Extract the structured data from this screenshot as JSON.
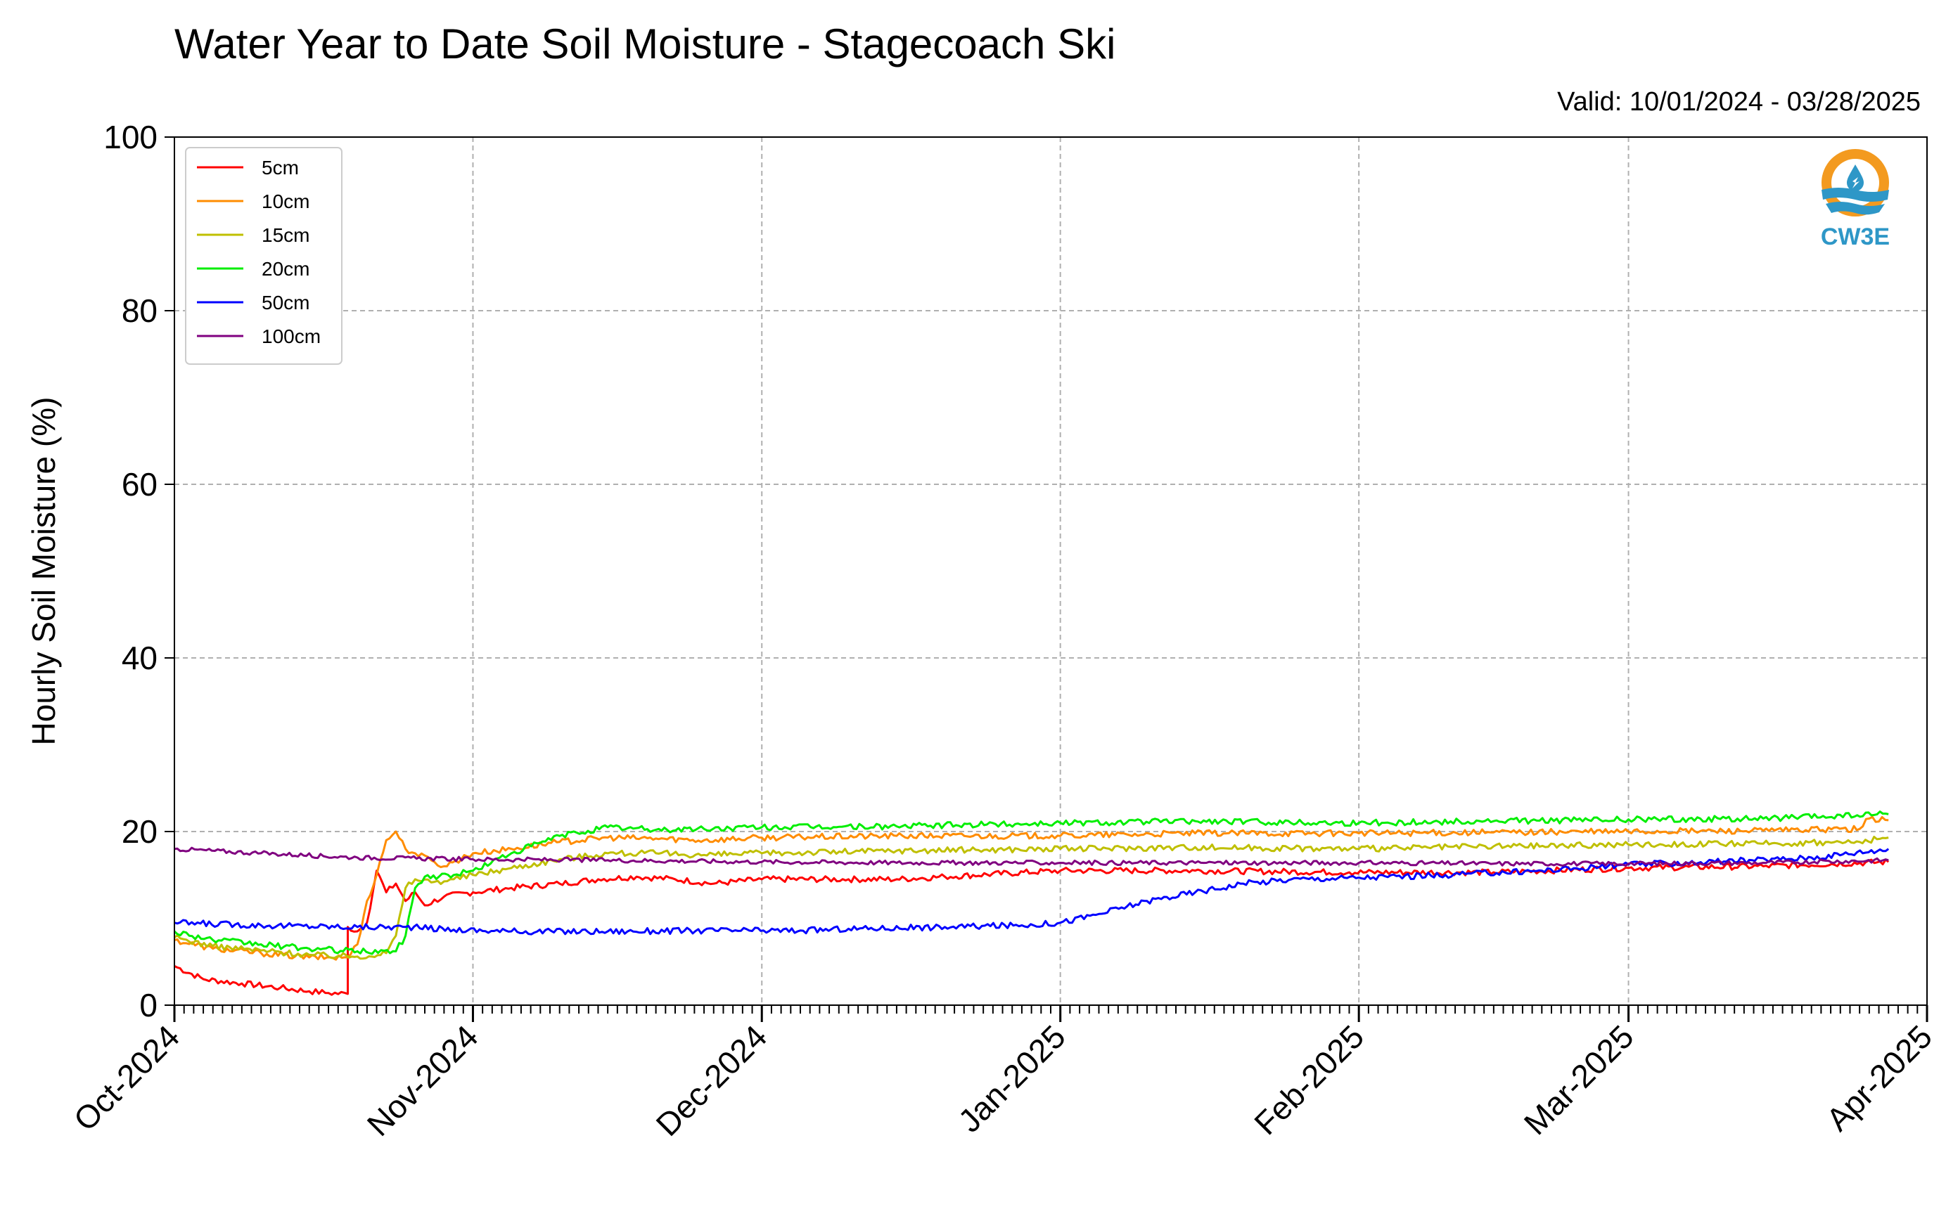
{
  "title": "Water Year to Date Soil Moisture - Stagecoach Ski",
  "valid": "Valid: 10/01/2024 - 03/28/2025",
  "logo": {
    "text": "CW3E",
    "icon": "water-drop-icon"
  },
  "chart_data": {
    "type": "line",
    "title": "Water Year to Date Soil Moisture - Stagecoach Ski",
    "ylabel": "Hourly Soil Moisture (%)",
    "xlabel": "",
    "ylim": [
      0,
      100
    ],
    "yticks": [
      0,
      20,
      40,
      60,
      80,
      100
    ],
    "xlim": [
      "2024-10-01",
      "2025-04-01"
    ],
    "xticks": [
      {
        "label": "Oct-2024",
        "date": "2024-10-01"
      },
      {
        "label": "Nov-2024",
        "date": "2024-11-01"
      },
      {
        "label": "Dec-2024",
        "date": "2024-12-01"
      },
      {
        "label": "Jan-2025",
        "date": "2025-01-01"
      },
      {
        "label": "Feb-2025",
        "date": "2025-02-01"
      },
      {
        "label": "Mar-2025",
        "date": "2025-03-01"
      },
      {
        "label": "Apr-2025",
        "date": "2025-04-01"
      }
    ],
    "grid": true,
    "legend_position": "top-left",
    "series": [
      {
        "name": "5cm",
        "color": "#ff0000",
        "points": [
          [
            "2024-10-01",
            4.5
          ],
          [
            "2024-10-04",
            3
          ],
          [
            "2024-10-08",
            2.5
          ],
          [
            "2024-10-12",
            2
          ],
          [
            "2024-10-15",
            1.6
          ],
          [
            "2024-10-17",
            1.4
          ],
          [
            "2024-10-19",
            1.3
          ],
          [
            "2024-10-19",
            9
          ],
          [
            "2024-10-20",
            8.5
          ],
          [
            "2024-10-21",
            9.5
          ],
          [
            "2024-10-22",
            15.5
          ],
          [
            "2024-10-23",
            13
          ],
          [
            "2024-10-24",
            14
          ],
          [
            "2024-10-25",
            12
          ],
          [
            "2024-10-26",
            13
          ],
          [
            "2024-10-27",
            11.5
          ],
          [
            "2024-10-29",
            12.5
          ],
          [
            "2024-11-01",
            13
          ],
          [
            "2024-11-05",
            13.5
          ],
          [
            "2024-11-10",
            14
          ],
          [
            "2024-11-14",
            14.5
          ],
          [
            "2024-11-18",
            14.8
          ],
          [
            "2024-11-22",
            14.5
          ],
          [
            "2024-11-26",
            14
          ],
          [
            "2024-12-01",
            14.5
          ],
          [
            "2024-12-10",
            14.5
          ],
          [
            "2024-12-15",
            14.5
          ],
          [
            "2024-12-20",
            14.8
          ],
          [
            "2025-01-01",
            15.5
          ],
          [
            "2025-01-15",
            15.5
          ],
          [
            "2025-01-31",
            15.3
          ],
          [
            "2025-02-15",
            15.3
          ],
          [
            "2025-03-01",
            15.8
          ],
          [
            "2025-03-15",
            16
          ],
          [
            "2025-03-28",
            16.5
          ]
        ]
      },
      {
        "name": "10cm",
        "color": "#ff8c00",
        "points": [
          [
            "2024-10-01",
            7.5
          ],
          [
            "2024-10-05",
            6.5
          ],
          [
            "2024-10-10",
            6
          ],
          [
            "2024-10-15",
            5.5
          ],
          [
            "2024-10-19",
            5.5
          ],
          [
            "2024-10-20",
            7
          ],
          [
            "2024-10-21",
            12
          ],
          [
            "2024-10-22",
            15
          ],
          [
            "2024-10-23",
            19
          ],
          [
            "2024-10-24",
            20
          ],
          [
            "2024-10-25",
            18
          ],
          [
            "2024-10-26",
            17.5
          ],
          [
            "2024-10-28",
            16.5
          ],
          [
            "2024-10-29",
            16
          ],
          [
            "2024-11-01",
            17.5
          ],
          [
            "2024-11-05",
            18
          ],
          [
            "2024-11-10",
            18.8
          ],
          [
            "2024-11-15",
            19.3
          ],
          [
            "2024-11-20",
            19.2
          ],
          [
            "2024-11-25",
            19
          ],
          [
            "2024-12-01",
            19.3
          ],
          [
            "2024-12-15",
            19.5
          ],
          [
            "2025-01-01",
            19.5
          ],
          [
            "2025-01-15",
            19.8
          ],
          [
            "2025-02-01",
            19.8
          ],
          [
            "2025-02-15",
            19.9
          ],
          [
            "2025-03-01",
            20
          ],
          [
            "2025-03-15",
            20.1
          ],
          [
            "2025-03-25",
            20.3
          ],
          [
            "2025-03-26",
            21.5
          ],
          [
            "2025-03-28",
            21.3
          ]
        ]
      },
      {
        "name": "15cm",
        "color": "#bfbf00",
        "points": [
          [
            "2024-10-01",
            7.8
          ],
          [
            "2024-10-05",
            6.8
          ],
          [
            "2024-10-10",
            6.3
          ],
          [
            "2024-10-15",
            5.8
          ],
          [
            "2024-10-20",
            5.6
          ],
          [
            "2024-10-23",
            6
          ],
          [
            "2024-10-24",
            8
          ],
          [
            "2024-10-25",
            13.5
          ],
          [
            "2024-10-26",
            14.5
          ],
          [
            "2024-10-28",
            14.2
          ],
          [
            "2024-10-30",
            14.5
          ],
          [
            "2024-11-01",
            15
          ],
          [
            "2024-11-05",
            15.8
          ],
          [
            "2024-11-10",
            16.8
          ],
          [
            "2024-11-15",
            17.5
          ],
          [
            "2024-11-20",
            17.5
          ],
          [
            "2024-11-25",
            17.3
          ],
          [
            "2024-12-01",
            17.5
          ],
          [
            "2024-12-15",
            17.8
          ],
          [
            "2025-01-01",
            18
          ],
          [
            "2025-01-15",
            18.2
          ],
          [
            "2025-02-01",
            18
          ],
          [
            "2025-02-15",
            18.3
          ],
          [
            "2025-03-01",
            18.5
          ],
          [
            "2025-03-15",
            18.6
          ],
          [
            "2025-03-25",
            18.8
          ],
          [
            "2025-03-28",
            19.3
          ]
        ]
      },
      {
        "name": "20cm",
        "color": "#00ee00",
        "points": [
          [
            "2024-10-01",
            8.5
          ],
          [
            "2024-10-05",
            7.5
          ],
          [
            "2024-10-10",
            7
          ],
          [
            "2024-10-15",
            6.5
          ],
          [
            "2024-10-20",
            6.2
          ],
          [
            "2024-10-24",
            6.2
          ],
          [
            "2024-10-25",
            8
          ],
          [
            "2024-10-26",
            13.5
          ],
          [
            "2024-10-27",
            14.8
          ],
          [
            "2024-10-30",
            15
          ],
          [
            "2024-11-01",
            15.5
          ],
          [
            "2024-11-05",
            17.5
          ],
          [
            "2024-11-10",
            19.5
          ],
          [
            "2024-11-15",
            20.5
          ],
          [
            "2024-11-20",
            20.2
          ],
          [
            "2024-11-25",
            20.3
          ],
          [
            "2024-12-01",
            20.5
          ],
          [
            "2024-12-15",
            20.6
          ],
          [
            "2025-01-01",
            21
          ],
          [
            "2025-01-15",
            21.2
          ],
          [
            "2025-02-01",
            21
          ],
          [
            "2025-02-15",
            21.2
          ],
          [
            "2025-03-01",
            21.4
          ],
          [
            "2025-03-15",
            21.5
          ],
          [
            "2025-03-28",
            22
          ]
        ]
      },
      {
        "name": "50cm",
        "color": "#0000ff",
        "points": [
          [
            "2024-10-01",
            9.5
          ],
          [
            "2024-10-10",
            9.2
          ],
          [
            "2024-10-20",
            9
          ],
          [
            "2024-10-25",
            9
          ],
          [
            "2024-10-30",
            8.7
          ],
          [
            "2024-11-05",
            8.5
          ],
          [
            "2024-11-15",
            8.5
          ],
          [
            "2024-11-25",
            8.6
          ],
          [
            "2024-12-05",
            8.6
          ],
          [
            "2024-12-10",
            8.8
          ],
          [
            "2024-12-20",
            9
          ],
          [
            "2024-12-28",
            9.2
          ],
          [
            "2025-01-01",
            9.5
          ],
          [
            "2025-01-05",
            10.5
          ],
          [
            "2025-01-10",
            12
          ],
          [
            "2025-01-15",
            13
          ],
          [
            "2025-01-20",
            14
          ],
          [
            "2025-01-25",
            14.5
          ],
          [
            "2025-02-01",
            14.7
          ],
          [
            "2025-02-10",
            15
          ],
          [
            "2025-02-20",
            15.5
          ],
          [
            "2025-03-01",
            16.2
          ],
          [
            "2025-03-10",
            16.5
          ],
          [
            "2025-03-20",
            17
          ],
          [
            "2025-03-28",
            18
          ]
        ]
      },
      {
        "name": "100cm",
        "color": "#800080",
        "points": [
          [
            "2024-10-01",
            18
          ],
          [
            "2024-10-10",
            17.5
          ],
          [
            "2024-10-20",
            17
          ],
          [
            "2024-11-01",
            16.8
          ],
          [
            "2024-11-15",
            16.7
          ],
          [
            "2024-12-01",
            16.5
          ],
          [
            "2024-12-15",
            16.4
          ],
          [
            "2025-01-01",
            16.4
          ],
          [
            "2025-01-15",
            16.4
          ],
          [
            "2025-02-01",
            16.4
          ],
          [
            "2025-02-15",
            16.3
          ],
          [
            "2025-03-01",
            16.3
          ],
          [
            "2025-03-15",
            16.4
          ],
          [
            "2025-03-28",
            16.7
          ]
        ]
      }
    ]
  }
}
